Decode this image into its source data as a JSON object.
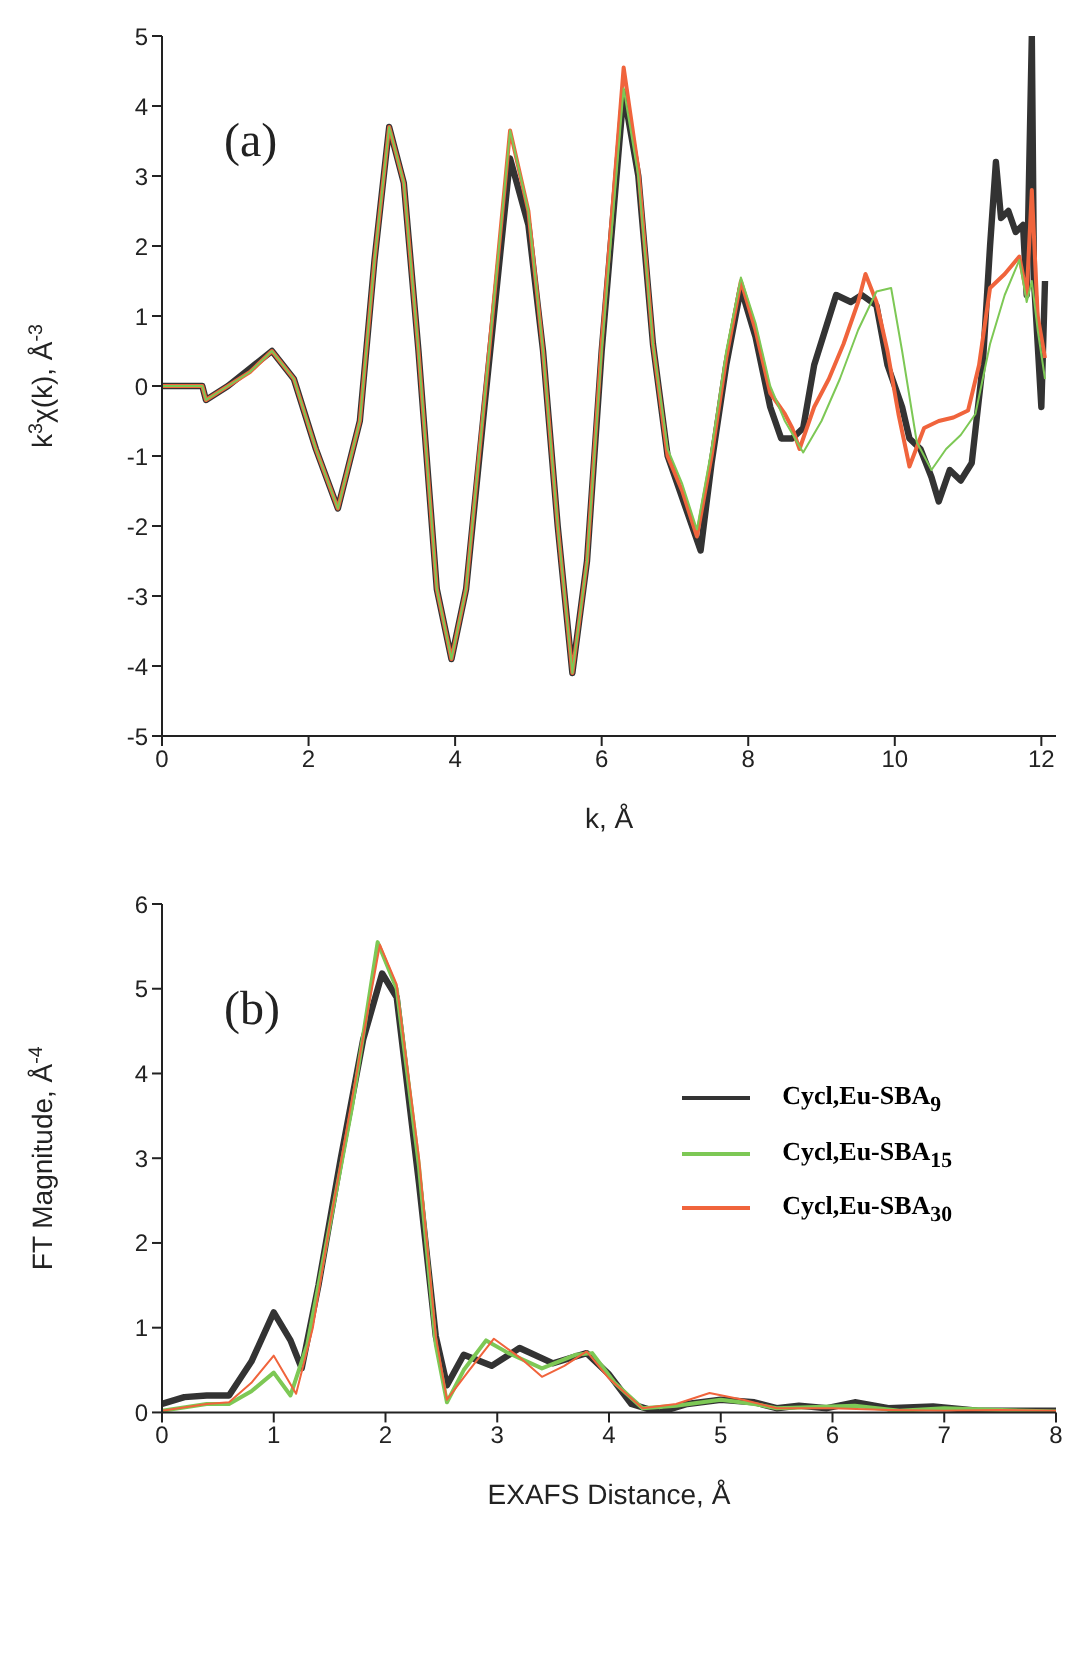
{
  "chart_data": [
    {
      "type": "line",
      "annotations": [
        "(a)"
      ],
      "xlabel": "k, Å",
      "ylabel": "k$^{3}$χ(k), Å$^{-3}$",
      "xlim": [
        0,
        12.2
      ],
      "xticks": [
        0,
        2,
        4,
        6,
        8,
        10,
        12
      ],
      "ylim": [
        -5,
        5
      ],
      "yticks": [
        -5,
        -4,
        -3,
        -2,
        -1,
        0,
        1,
        2,
        3,
        4,
        5
      ],
      "grid": false,
      "legend": false,
      "marker": "none",
      "line_style": "solid",
      "series": [
        {
          "color": "#333333",
          "x": [
            0,
            0.55,
            0.6,
            0.9,
            1.2,
            1.5,
            1.8,
            2.1,
            2.4,
            2.7,
            2.9,
            3.1,
            3.3,
            3.5,
            3.75,
            3.95,
            4.15,
            4.4,
            4.75,
            5.0,
            5.2,
            5.4,
            5.6,
            5.8,
            6.0,
            6.3,
            6.5,
            6.7,
            6.9,
            7.1,
            7.35,
            7.5,
            7.7,
            7.9,
            8.1,
            8.3,
            8.45,
            8.6,
            8.75,
            8.9,
            9.05,
            9.2,
            9.4,
            9.55,
            9.75,
            9.9,
            10.1,
            10.2,
            10.35,
            10.5,
            10.6,
            10.75,
            10.9,
            11.05,
            11.2,
            11.3,
            11.38,
            11.45,
            11.55,
            11.65,
            11.75,
            11.8,
            11.87,
            11.9,
            12.0,
            12.05
          ],
          "values": [
            0,
            0,
            -0.2,
            0,
            0.25,
            0.5,
            0.1,
            -0.9,
            -1.75,
            -0.5,
            1.8,
            3.7,
            2.9,
            0.5,
            -2.9,
            -3.9,
            -2.9,
            -0.3,
            3.25,
            2.3,
            0.5,
            -2.0,
            -4.1,
            -2.5,
            0.5,
            4.2,
            3.0,
            0.6,
            -1.0,
            -1.6,
            -2.35,
            -1.1,
            0.3,
            1.4,
            0.7,
            -0.3,
            -0.75,
            -0.75,
            -0.6,
            0.3,
            0.8,
            1.3,
            1.2,
            1.3,
            1.15,
            0.3,
            -0.3,
            -0.75,
            -0.9,
            -1.3,
            -1.65,
            -1.2,
            -1.35,
            -1.1,
            0.3,
            2.0,
            3.2,
            2.4,
            2.5,
            2.2,
            2.3,
            1.3,
            5.0,
            1.5,
            -0.3,
            1.5
          ]
        },
        {
          "color": "#f0643c",
          "x": [
            0,
            0.55,
            0.6,
            0.9,
            1.2,
            1.5,
            1.8,
            2.1,
            2.4,
            2.7,
            2.9,
            3.1,
            3.3,
            3.5,
            3.75,
            3.95,
            4.15,
            4.4,
            4.75,
            5.0,
            5.2,
            5.4,
            5.6,
            5.8,
            6.0,
            6.3,
            6.5,
            6.7,
            6.9,
            7.1,
            7.3,
            7.5,
            7.7,
            7.9,
            8.1,
            8.3,
            8.5,
            8.6,
            8.7,
            8.9,
            9.1,
            9.3,
            9.5,
            9.6,
            9.75,
            9.9,
            10.05,
            10.2,
            10.4,
            10.6,
            10.8,
            11.0,
            11.15,
            11.3,
            11.5,
            11.7,
            11.8,
            11.87,
            11.95,
            12.05
          ],
          "values": [
            0,
            0,
            -0.2,
            0,
            0.2,
            0.5,
            0.1,
            -0.9,
            -1.75,
            -0.5,
            1.8,
            3.7,
            2.9,
            0.5,
            -2.9,
            -3.9,
            -2.9,
            -0.2,
            3.65,
            2.5,
            0.5,
            -2.0,
            -4.1,
            -2.5,
            0.6,
            4.55,
            3.1,
            0.6,
            -1.0,
            -1.5,
            -2.15,
            -1.0,
            0.4,
            1.5,
            0.8,
            -0.1,
            -0.4,
            -0.6,
            -0.9,
            -0.3,
            0.1,
            0.6,
            1.2,
            1.6,
            1.2,
            0.5,
            -0.4,
            -1.15,
            -0.6,
            -0.5,
            -0.45,
            -0.35,
            0.3,
            1.4,
            1.6,
            1.85,
            1.3,
            2.8,
            1.0,
            0.4
          ]
        },
        {
          "color": "#7dc855",
          "x": [
            0,
            0.55,
            0.6,
            0.9,
            1.2,
            1.5,
            1.8,
            2.1,
            2.4,
            2.7,
            2.9,
            3.1,
            3.3,
            3.5,
            3.75,
            3.95,
            4.15,
            4.4,
            4.75,
            5.0,
            5.2,
            5.4,
            5.6,
            5.8,
            6.0,
            6.3,
            6.5,
            6.7,
            6.9,
            7.1,
            7.3,
            7.5,
            7.7,
            7.9,
            8.1,
            8.3,
            8.5,
            8.75,
            9.0,
            9.25,
            9.5,
            9.75,
            9.95,
            10.1,
            10.3,
            10.5,
            10.7,
            10.9,
            11.1,
            11.3,
            11.5,
            11.7,
            11.8,
            11.87,
            11.95,
            12.05
          ],
          "values": [
            0,
            0,
            -0.2,
            0,
            0.2,
            0.5,
            0.1,
            -0.9,
            -1.75,
            -0.5,
            1.8,
            3.7,
            2.9,
            0.5,
            -2.9,
            -3.9,
            -2.9,
            -0.2,
            3.65,
            2.5,
            0.5,
            -2.0,
            -4.1,
            -2.5,
            0.5,
            4.25,
            3.0,
            0.6,
            -0.9,
            -1.4,
            -2.05,
            -0.9,
            0.5,
            1.55,
            0.9,
            0.0,
            -0.5,
            -0.95,
            -0.5,
            0.1,
            0.8,
            1.35,
            1.4,
            0.5,
            -0.8,
            -1.2,
            -0.9,
            -0.7,
            -0.4,
            0.6,
            1.3,
            1.8,
            1.2,
            1.5,
            0.8,
            0.1
          ]
        }
      ]
    },
    {
      "type": "line",
      "annotations": [
        "(b)"
      ],
      "xlabel": "EXAFS Distance, Å",
      "ylabel": "FT Magnitude, Å$^{-4}$",
      "xlim": [
        0,
        8
      ],
      "xticks": [
        0,
        1,
        2,
        3,
        4,
        5,
        6,
        7,
        8
      ],
      "ylim": [
        0,
        6
      ],
      "yticks": [
        0,
        1,
        2,
        3,
        4,
        5,
        6
      ],
      "grid": false,
      "legend": "top right",
      "marker": "none",
      "line_style": "solid",
      "series": [
        {
          "name": "Cycl,Eu-SBA$_{9}$",
          "color": "#333333",
          "x": [
            0,
            0.2,
            0.4,
            0.6,
            0.8,
            1.0,
            1.15,
            1.25,
            1.4,
            1.6,
            1.8,
            1.97,
            2.1,
            2.3,
            2.45,
            2.55,
            2.7,
            2.95,
            3.2,
            3.5,
            3.8,
            4.0,
            4.2,
            4.45,
            4.7,
            5.0,
            5.3,
            5.5,
            5.7,
            5.95,
            6.2,
            6.5,
            6.9,
            7.3,
            7.7,
            8.0
          ],
          "values": [
            0.1,
            0.18,
            0.2,
            0.2,
            0.6,
            1.18,
            0.85,
            0.52,
            1.5,
            3.0,
            4.4,
            5.18,
            4.9,
            2.7,
            0.9,
            0.32,
            0.68,
            0.55,
            0.76,
            0.58,
            0.7,
            0.45,
            0.1,
            0.0,
            0.1,
            0.15,
            0.12,
            0.05,
            0.08,
            0.05,
            0.12,
            0.05,
            0.07,
            0.02,
            0.02,
            0.02
          ]
        },
        {
          "name": "Cycl,Eu-SBA$_{15}$",
          "color": "#7dc855",
          "x": [
            0,
            0.4,
            0.6,
            0.8,
            1.0,
            1.15,
            1.3,
            1.5,
            1.7,
            1.93,
            2.1,
            2.3,
            2.45,
            2.55,
            2.7,
            2.9,
            3.1,
            3.4,
            3.7,
            3.85,
            4.05,
            4.3,
            4.6,
            5.0,
            5.3,
            5.5,
            6.2,
            6.6,
            7.0,
            8.0
          ],
          "values": [
            0.02,
            0.1,
            0.1,
            0.25,
            0.47,
            0.2,
            0.8,
            2.2,
            3.6,
            5.55,
            5.0,
            2.9,
            0.8,
            0.12,
            0.5,
            0.85,
            0.7,
            0.52,
            0.68,
            0.7,
            0.35,
            0.05,
            0.08,
            0.15,
            0.1,
            0.05,
            0.08,
            0.02,
            0.05,
            0.01
          ]
        },
        {
          "name": "Cycl,Eu-SBA$_{30}$",
          "color": "#f0643c",
          "x": [
            0,
            0.4,
            0.6,
            0.8,
            1.0,
            1.2,
            1.35,
            1.5,
            1.7,
            1.95,
            2.1,
            2.3,
            2.45,
            2.55,
            2.75,
            2.97,
            3.2,
            3.4,
            3.6,
            3.8,
            4.0,
            4.3,
            4.6,
            4.9,
            5.2,
            5.5,
            6.0,
            6.5,
            7.0,
            7.5,
            8.0
          ],
          "values": [
            0.02,
            0.1,
            0.12,
            0.35,
            0.67,
            0.22,
            1.0,
            2.2,
            3.7,
            5.52,
            5.05,
            3.0,
            0.9,
            0.15,
            0.5,
            0.87,
            0.65,
            0.42,
            0.55,
            0.72,
            0.4,
            0.05,
            0.1,
            0.23,
            0.15,
            0.05,
            0.05,
            0.03,
            0.02,
            0.03,
            0.02
          ]
        }
      ]
    }
  ]
}
